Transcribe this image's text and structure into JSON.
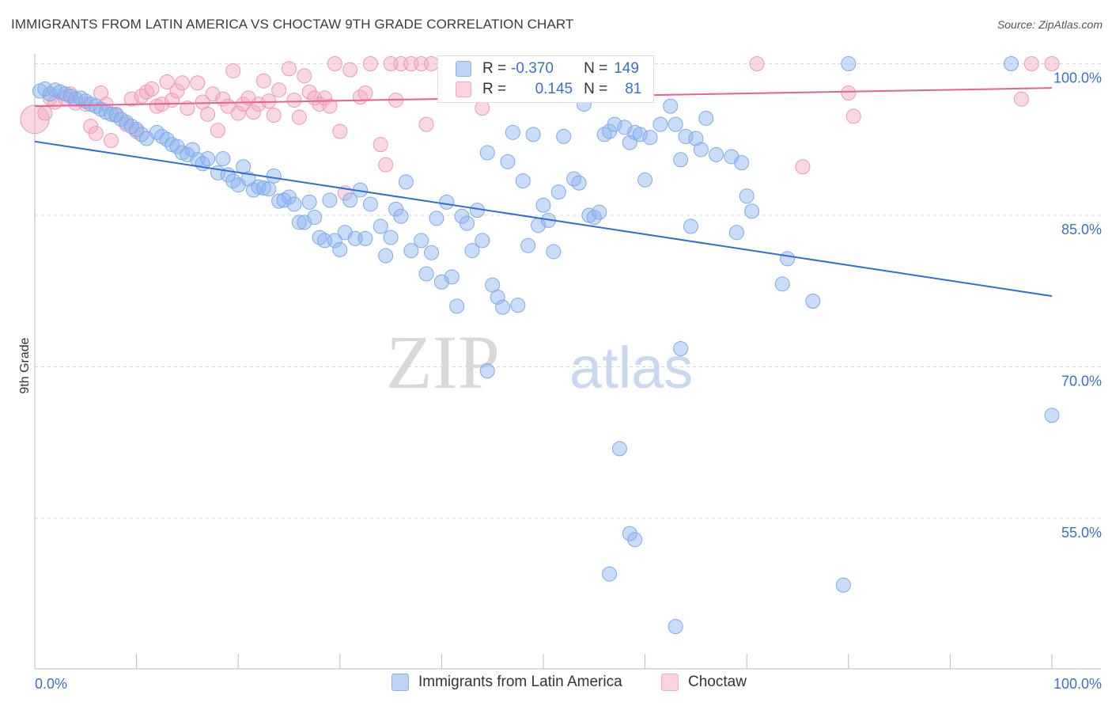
{
  "title": "IMMIGRANTS FROM LATIN AMERICA VS CHOCTAW 9TH GRADE CORRELATION CHART",
  "source": "Source: ZipAtlas.com",
  "watermark": {
    "zip": "ZIP",
    "atlas": "atlas"
  },
  "colors": {
    "blue": "#8ab4f0",
    "blue_line": "#2d6fd3",
    "pink": "#f4a8c1",
    "pink_line": "#e8628f",
    "axis_label_blue": "#3a70c7",
    "grid": "#d8d8d8"
  },
  "legend_top": {
    "rows": [
      {
        "r_label": "R =",
        "r_value": "-0.370",
        "n_label": "N =",
        "n_value": "149"
      },
      {
        "r_label": "R =",
        "r_value": "0.145",
        "n_label": "N =",
        "n_value": "81"
      }
    ]
  },
  "legend_bottom": {
    "items": [
      "Immigrants from Latin America",
      "Choctaw"
    ]
  },
  "chart_data": {
    "type": "scatter",
    "title": "IMMIGRANTS FROM LATIN AMERICA VS CHOCTAW 9TH GRADE CORRELATION CHART",
    "xlabel": "",
    "ylabel": "9th Grade",
    "xlim": [
      0,
      100
    ],
    "ylim": [
      37.5,
      102.5
    ],
    "x_tick_labels": [
      "0.0%",
      "100.0%"
    ],
    "y_ticks": [
      55,
      70,
      85,
      100
    ],
    "y_tick_labels": [
      "55.0%",
      "70.0%",
      "85.0%",
      "100.0%"
    ],
    "grid": true,
    "legend_position": "top-center",
    "series": [
      {
        "name": "Immigrants from Latin America",
        "color": "#8ab4f0",
        "trend": {
          "x": [
            0,
            100
          ],
          "y": [
            92.3,
            77.0
          ]
        },
        "points": [
          [
            0.5,
            97.3
          ],
          [
            1,
            97.5
          ],
          [
            1.5,
            97.0
          ],
          [
            2,
            97.4
          ],
          [
            2.5,
            97.2
          ],
          [
            3,
            97.0
          ],
          [
            3.5,
            96.8
          ],
          [
            4,
            96.5
          ],
          [
            4.5,
            96.6
          ],
          [
            5,
            96.3
          ],
          [
            5.5,
            96.0
          ],
          [
            6,
            95.8
          ],
          [
            6.5,
            95.5
          ],
          [
            7,
            95.2
          ],
          [
            7.5,
            95.0
          ],
          [
            8,
            94.9
          ],
          [
            8.5,
            94.5
          ],
          [
            9,
            94.2
          ],
          [
            9.5,
            93.8
          ],
          [
            10,
            93.5
          ],
          [
            10.5,
            93.0
          ],
          [
            11,
            92.6
          ],
          [
            12,
            93.2
          ],
          [
            12.5,
            92.8
          ],
          [
            13,
            92.5
          ],
          [
            13.5,
            92.0
          ],
          [
            14,
            91.8
          ],
          [
            14.5,
            91.2
          ],
          [
            15,
            91.0
          ],
          [
            15.5,
            91.5
          ],
          [
            16,
            90.5
          ],
          [
            16.5,
            90.1
          ],
          [
            17,
            90.6
          ],
          [
            18,
            89.2
          ],
          [
            18.5,
            90.6
          ],
          [
            19,
            89.0
          ],
          [
            19.5,
            88.4
          ],
          [
            20,
            88.0
          ],
          [
            20.5,
            89.8
          ],
          [
            21,
            88.6
          ],
          [
            21.5,
            87.5
          ],
          [
            22,
            87.8
          ],
          [
            22.5,
            87.7
          ],
          [
            23,
            87.6
          ],
          [
            23.5,
            88.9
          ],
          [
            24,
            86.4
          ],
          [
            24.5,
            86.5
          ],
          [
            25,
            86.8
          ],
          [
            25.5,
            86.1
          ],
          [
            26,
            84.3
          ],
          [
            26.5,
            84.3
          ],
          [
            27,
            86.3
          ],
          [
            27.5,
            84.8
          ],
          [
            28,
            82.8
          ],
          [
            28.5,
            82.5
          ],
          [
            29,
            86.5
          ],
          [
            29.5,
            82.5
          ],
          [
            30,
            81.6
          ],
          [
            30.5,
            83.3
          ],
          [
            31,
            86.5
          ],
          [
            31.5,
            82.7
          ],
          [
            32,
            87.5
          ],
          [
            32.5,
            82.7
          ],
          [
            33,
            86.1
          ],
          [
            34,
            83.9
          ],
          [
            34.5,
            81.0
          ],
          [
            35,
            82.8
          ],
          [
            35.5,
            85.6
          ],
          [
            36,
            84.9
          ],
          [
            36.5,
            88.3
          ],
          [
            37,
            81.5
          ],
          [
            38,
            82.5
          ],
          [
            38.5,
            79.2
          ],
          [
            39,
            81.3
          ],
          [
            39.5,
            84.7
          ],
          [
            40,
            78.4
          ],
          [
            40.5,
            86.3
          ],
          [
            41,
            78.9
          ],
          [
            41.5,
            76.0
          ],
          [
            42,
            84.9
          ],
          [
            42.5,
            84.2
          ],
          [
            43,
            81.5
          ],
          [
            43.5,
            85.5
          ],
          [
            44,
            82.5
          ],
          [
            44.5,
            91.2
          ],
          [
            45,
            78.1
          ],
          [
            45.5,
            76.9
          ],
          [
            46,
            75.9
          ],
          [
            46.5,
            90.3
          ],
          [
            47,
            93.2
          ],
          [
            47.5,
            76.1
          ],
          [
            48,
            88.4
          ],
          [
            48.5,
            82.0
          ],
          [
            49,
            93.0
          ],
          [
            49.5,
            84.0
          ],
          [
            50,
            86.0
          ],
          [
            50.5,
            84.5
          ],
          [
            51,
            81.4
          ],
          [
            51.5,
            87.3
          ],
          [
            52,
            92.8
          ],
          [
            53,
            88.6
          ],
          [
            53.5,
            88.2
          ],
          [
            54,
            96.0
          ],
          [
            54.5,
            85.0
          ],
          [
            55,
            84.8
          ],
          [
            55.5,
            85.3
          ],
          [
            56,
            93.0
          ],
          [
            56.5,
            93.3
          ],
          [
            57,
            94.0
          ],
          [
            58,
            93.7
          ],
          [
            58.5,
            92.2
          ],
          [
            59,
            93.2
          ],
          [
            59.5,
            93.0
          ],
          [
            60,
            88.5
          ],
          [
            60.5,
            92.7
          ],
          [
            61.5,
            94.0
          ],
          [
            62.5,
            95.8
          ],
          [
            63,
            94.0
          ],
          [
            63.5,
            90.5
          ],
          [
            64,
            92.8
          ],
          [
            64.5,
            83.9
          ],
          [
            65,
            92.6
          ],
          [
            65.5,
            91.5
          ],
          [
            66,
            94.6
          ],
          [
            67,
            91.0
          ],
          [
            68.5,
            90.8
          ],
          [
            69,
            83.3
          ],
          [
            69.5,
            90.2
          ],
          [
            70,
            86.9
          ],
          [
            70.5,
            85.4
          ],
          [
            73.5,
            78.2
          ],
          [
            74,
            80.7
          ],
          [
            76.5,
            76.5
          ],
          [
            80,
            100.0
          ],
          [
            96,
            100.0
          ],
          [
            100,
            65.2
          ],
          [
            63.5,
            71.8
          ],
          [
            44.5,
            69.6
          ],
          [
            57.5,
            61.9
          ],
          [
            58.5,
            53.5
          ],
          [
            59,
            52.9
          ],
          [
            56.5,
            49.5
          ],
          [
            79.5,
            48.4
          ],
          [
            63,
            44.3
          ]
        ]
      },
      {
        "name": "Choctaw",
        "color": "#f4a8c1",
        "trend": {
          "x": [
            0,
            100
          ],
          "y": [
            95.8,
            97.6
          ]
        },
        "points": [
          [
            0,
            94.5
          ],
          [
            1,
            95.1
          ],
          [
            1.5,
            96.6
          ],
          [
            2,
            96.2
          ],
          [
            3,
            96.6
          ],
          [
            3.5,
            97.0
          ],
          [
            4,
            96.1
          ],
          [
            5,
            96.0
          ],
          [
            5.5,
            93.8
          ],
          [
            6,
            93.1
          ],
          [
            6.5,
            97.1
          ],
          [
            7,
            96.0
          ],
          [
            7.5,
            92.4
          ],
          [
            8,
            95.0
          ],
          [
            9,
            94.0
          ],
          [
            9.5,
            96.5
          ],
          [
            10,
            93.3
          ],
          [
            10.5,
            96.8
          ],
          [
            11,
            97.2
          ],
          [
            11.5,
            97.5
          ],
          [
            12,
            95.8
          ],
          [
            12.5,
            96.0
          ],
          [
            13,
            98.2
          ],
          [
            13.5,
            96.4
          ],
          [
            14,
            97.3
          ],
          [
            14.5,
            98.1
          ],
          [
            15,
            95.6
          ],
          [
            16,
            98.1
          ],
          [
            16.5,
            96.2
          ],
          [
            17,
            95.0
          ],
          [
            17.5,
            97.0
          ],
          [
            18,
            93.4
          ],
          [
            18.5,
            96.5
          ],
          [
            19,
            95.8
          ],
          [
            19.5,
            99.3
          ],
          [
            20,
            95.1
          ],
          [
            20.5,
            96.0
          ],
          [
            21,
            96.6
          ],
          [
            21.5,
            95.2
          ],
          [
            22,
            96.0
          ],
          [
            22.5,
            98.3
          ],
          [
            23,
            96.3
          ],
          [
            23.5,
            94.9
          ],
          [
            24,
            97.4
          ],
          [
            25,
            99.5
          ],
          [
            25.5,
            96.4
          ],
          [
            26,
            94.7
          ],
          [
            26.5,
            98.8
          ],
          [
            27,
            97.2
          ],
          [
            27.5,
            96.6
          ],
          [
            28,
            96.0
          ],
          [
            28.5,
            96.6
          ],
          [
            29,
            95.8
          ],
          [
            29.5,
            100.0
          ],
          [
            30,
            93.3
          ],
          [
            30.5,
            87.2
          ],
          [
            31,
            99.4
          ],
          [
            32,
            96.7
          ],
          [
            32.5,
            97.1
          ],
          [
            33,
            100.0
          ],
          [
            34,
            92.0
          ],
          [
            34.5,
            90.0
          ],
          [
            35,
            100.0
          ],
          [
            35.5,
            96.4
          ],
          [
            36,
            100.0
          ],
          [
            37,
            100.0
          ],
          [
            38,
            100.0
          ],
          [
            38.5,
            94.0
          ],
          [
            39,
            100.0
          ],
          [
            44,
            95.6
          ],
          [
            44.5,
            100.0
          ],
          [
            50,
            98.8
          ],
          [
            60,
            98.0
          ],
          [
            71,
            100.0
          ],
          [
            75.5,
            89.8
          ],
          [
            80,
            97.1
          ],
          [
            80.5,
            94.8
          ],
          [
            97,
            96.5
          ],
          [
            98,
            100.0
          ],
          [
            100,
            100.0
          ]
        ]
      }
    ]
  }
}
